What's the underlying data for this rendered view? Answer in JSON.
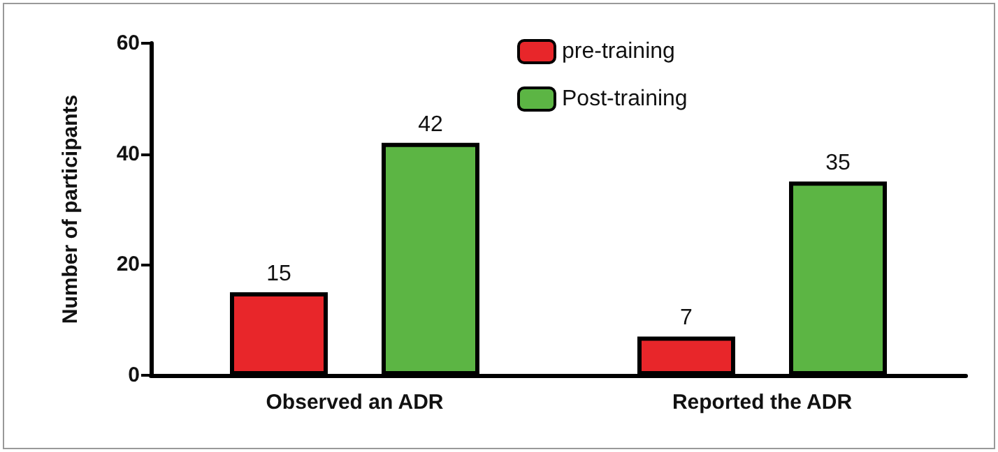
{
  "chart_data": {
    "type": "bar",
    "ylabel": "Number of participants",
    "categories": [
      "Observed an ADR",
      "Reported the ADR"
    ],
    "series": [
      {
        "name": "pre-training",
        "color": "#e8262a",
        "values": [
          15,
          7
        ]
      },
      {
        "name": "Post-training",
        "color": "#5cb544",
        "values": [
          42,
          35
        ]
      }
    ],
    "ylim": [
      0,
      60
    ],
    "yticks": [
      0,
      20,
      40,
      60
    ],
    "data_labels": true,
    "legend": "top",
    "grid": false
  }
}
